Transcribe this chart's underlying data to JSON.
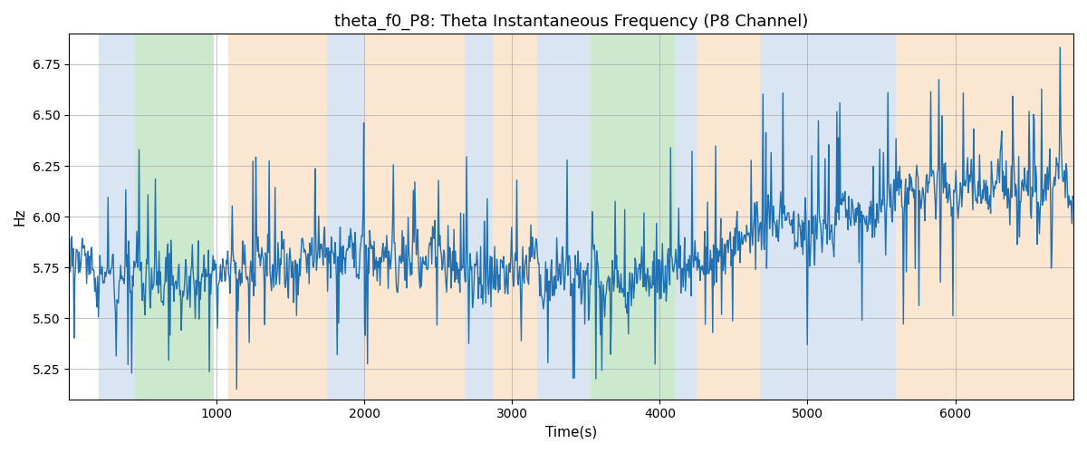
{
  "title": "theta_f0_P8: Theta Instantaneous Frequency (P8 Channel)",
  "xlabel": "Time(s)",
  "ylabel": "Hz",
  "ylim": [
    5.1,
    6.9
  ],
  "xlim": [
    0,
    6800
  ],
  "line_color": "#2070b4",
  "line_width": 1.0,
  "background_color": "#ffffff",
  "grid_color": "#aaaaaa",
  "seed": 42,
  "n_points": 1360,
  "base_freq": 5.85,
  "noise_std": 0.15,
  "colored_bands": [
    {
      "xmin": 200,
      "xmax": 450,
      "color": "#aec6e8",
      "alpha": 0.45
    },
    {
      "xmin": 450,
      "xmax": 980,
      "color": "#90d090",
      "alpha": 0.45
    },
    {
      "xmin": 1080,
      "xmax": 1750,
      "color": "#f5c89a",
      "alpha": 0.45
    },
    {
      "xmin": 1750,
      "xmax": 2000,
      "color": "#aec6e8",
      "alpha": 0.45
    },
    {
      "xmin": 2000,
      "xmax": 2680,
      "color": "#f5c89a",
      "alpha": 0.45
    },
    {
      "xmin": 2680,
      "xmax": 2870,
      "color": "#aec6e8",
      "alpha": 0.45
    },
    {
      "xmin": 2870,
      "xmax": 3170,
      "color": "#f5c89a",
      "alpha": 0.45
    },
    {
      "xmin": 3170,
      "xmax": 3530,
      "color": "#aec6e8",
      "alpha": 0.45
    },
    {
      "xmin": 3530,
      "xmax": 4100,
      "color": "#90d090",
      "alpha": 0.45
    },
    {
      "xmin": 4100,
      "xmax": 4250,
      "color": "#aec6e8",
      "alpha": 0.45
    },
    {
      "xmin": 4250,
      "xmax": 4680,
      "color": "#f5c89a",
      "alpha": 0.45
    },
    {
      "xmin": 4680,
      "xmax": 5600,
      "color": "#aec6e8",
      "alpha": 0.45
    },
    {
      "xmin": 5600,
      "xmax": 6050,
      "color": "#f5c89a",
      "alpha": 0.45
    },
    {
      "xmin": 6050,
      "xmax": 6800,
      "color": "#f5c89a",
      "alpha": 0.45
    }
  ]
}
